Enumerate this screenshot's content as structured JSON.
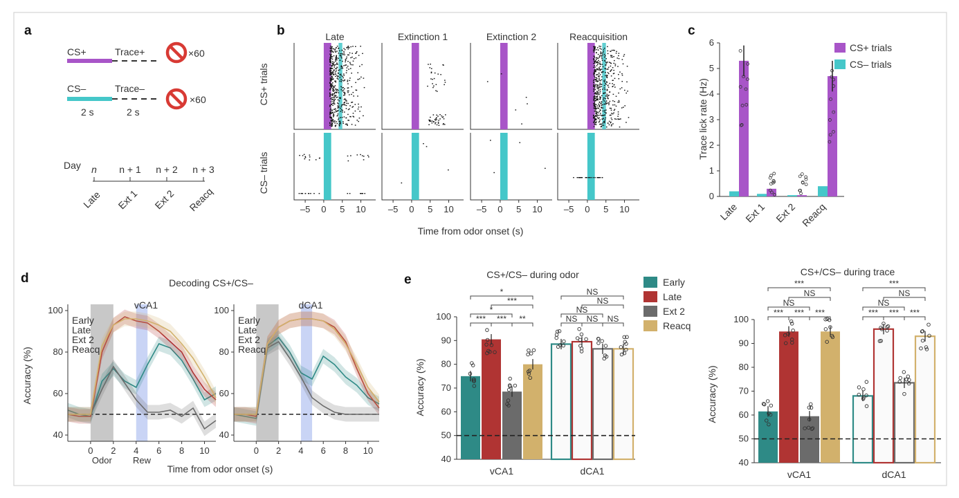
{
  "colors": {
    "purple": "#a855c8",
    "teal": "#45c7c9",
    "early": "#2e8a86",
    "late": "#b03433",
    "ext2": "#6b6b6b",
    "reacq": "#d2b16c",
    "grayband": "#c8c8c8",
    "blueband": "#c9d4f5",
    "ext1": "#b9b9b9"
  },
  "panel_a": {
    "letter": "a",
    "cs_plus": "CS+",
    "trace_plus": "Trace+",
    "times_plus": "×60",
    "cs_minus": "CS–",
    "trace_minus": "Trace–",
    "times_minus": "×60",
    "dur_cs": "2 s",
    "dur_trace": "2 s",
    "day_label": "Day",
    "days": [
      "n",
      "n + 1",
      "n + 2",
      "n + 3"
    ],
    "phases": [
      "Late",
      "Ext 1",
      "Ext 2",
      "Reacq"
    ],
    "icon": "no-reward-icon"
  },
  "panel_b": {
    "letter": "b",
    "columns": [
      "Late",
      "Extinction 1",
      "Extinction 2",
      "Reacquisition"
    ],
    "rows": [
      "CS+ trials",
      "CS– trials"
    ],
    "xticks": [
      "–5",
      "0",
      "5",
      "10"
    ],
    "xlabel": "Time from odor onset (s)"
  },
  "panel_c": {
    "letter": "c",
    "ylabel": "Trace lick rate (Hz)",
    "legend": [
      "CS+ trials",
      "CS– trials"
    ],
    "chart_data": {
      "type": "bar",
      "categories": [
        "Late",
        "Ext 1",
        "Ext 2",
        "Reacq"
      ],
      "series": [
        {
          "name": "CS+ trials",
          "values": [
            5.3,
            0.3,
            0.05,
            4.7
          ]
        },
        {
          "name": "CS– trials",
          "values": [
            0.2,
            0.1,
            0.05,
            0.4
          ]
        }
      ],
      "ylim": [
        0,
        6
      ],
      "yticks": [
        "0",
        "1",
        "2",
        "3",
        "4",
        "5",
        "6"
      ]
    }
  },
  "panel_d": {
    "letter": "d",
    "title": "Decoding CS+/CS–",
    "xlabel": "Time from odor onset (s)",
    "ylabel": "Accuracy (%)",
    "odor_label": "Odor",
    "rew_label": "Rew",
    "legend": [
      "Early",
      "Late",
      "Ext 2",
      "Reacq"
    ],
    "chart_data": [
      {
        "type": "line",
        "title": "vCA1",
        "x": [
          -2,
          -1,
          0,
          1,
          2,
          3,
          4,
          5,
          6,
          7,
          8,
          9,
          10,
          11
        ],
        "xticks": [
          "0",
          "2",
          "4",
          "6",
          "8",
          "10"
        ],
        "yticks": [
          "40",
          "60",
          "80",
          "100"
        ],
        "xlim": [
          -2,
          11
        ],
        "ylim": [
          37,
          103
        ],
        "series": [
          {
            "name": "Early",
            "values": [
              52,
              50,
              49,
              66,
              72,
              66,
              63,
              74,
              84,
              82,
              76,
              67,
              57,
              60
            ]
          },
          {
            "name": "Late",
            "values": [
              50,
              49,
              49,
              80,
              93,
              97,
              95,
              94,
              90,
              85,
              80,
              70,
              62,
              57
            ]
          },
          {
            "name": "Ext 2",
            "values": [
              50,
              50,
              50,
              62,
              73,
              65,
              57,
              51,
              51,
              52,
              49,
              53,
              43,
              47
            ]
          },
          {
            "name": "Reacq",
            "values": [
              50,
              50,
              50,
              83,
              93,
              96,
              96,
              95,
              93,
              90,
              84,
              77,
              68,
              58
            ]
          }
        ]
      },
      {
        "type": "line",
        "title": "dCA1",
        "x": [
          -2,
          -1,
          0,
          1,
          2,
          3,
          4,
          5,
          6,
          7,
          8,
          9,
          10,
          11
        ],
        "xticks": [
          "0",
          "2",
          "4",
          "6",
          "8",
          "10"
        ],
        "yticks": [
          "40",
          "60",
          "80",
          "100"
        ],
        "xlim": [
          -2,
          11
        ],
        "ylim": [
          37,
          103
        ],
        "series": [
          {
            "name": "Early",
            "values": [
              50,
              49,
              48,
              83,
              87,
              80,
              70,
              67,
              78,
              74,
              68,
              64,
              58,
              55
            ]
          },
          {
            "name": "Late",
            "values": [
              50,
              50,
              49,
              84,
              92,
              95,
              96,
              96,
              95,
              92,
              85,
              72,
              60,
              53
            ]
          },
          {
            "name": "Ext 2",
            "values": [
              50,
              50,
              50,
              82,
              85,
              77,
              68,
              58,
              54,
              51,
              50,
              50,
              50,
              50
            ]
          },
          {
            "name": "Reacq",
            "values": [
              50,
              50,
              50,
              84,
              92,
              95,
              96,
              96,
              95,
              91,
              84,
              74,
              63,
              56
            ]
          }
        ]
      }
    ]
  },
  "panel_e": {
    "letter": "e",
    "ylabel": "Accuracy (%)",
    "legend": [
      "Early",
      "Late",
      "Ext 2",
      "Reacq"
    ],
    "chart_data": [
      {
        "type": "bar",
        "title": "CS+/CS– during odor",
        "categories": [
          "vCA1",
          "dCA1"
        ],
        "series": [
          {
            "name": "Early",
            "values": [
              75,
              88.5
            ]
          },
          {
            "name": "Late",
            "values": [
              90.5,
              89.5
            ]
          },
          {
            "name": "Ext 2",
            "values": [
              68.5,
              86.5
            ]
          },
          {
            "name": "Reacq",
            "values": [
              80,
              86.5
            ]
          }
        ],
        "ylim": [
          40,
          100
        ],
        "yticks": [
          "40",
          "50",
          "60",
          "70",
          "80",
          "90",
          "100"
        ],
        "chance": 50,
        "sig_vca1": [
          "*",
          "***",
          "*",
          "***",
          "***",
          "**"
        ],
        "sig_dca1": [
          "NS",
          "NS",
          "NS",
          "NS",
          "NS",
          "NS"
        ]
      },
      {
        "type": "bar",
        "title": "CS+/CS– during trace",
        "categories": [
          "vCA1",
          "dCA1"
        ],
        "series": [
          {
            "name": "Early",
            "values": [
              61.5,
              68
            ]
          },
          {
            "name": "Late",
            "values": [
              95,
              96
            ]
          },
          {
            "name": "Ext 2",
            "values": [
              59.5,
              73.5
            ]
          },
          {
            "name": "Reacq",
            "values": [
              95,
              93
            ]
          }
        ],
        "ylim": [
          40,
          100
        ],
        "yticks": [
          "40",
          "50",
          "60",
          "70",
          "80",
          "90",
          "100"
        ],
        "chance": 50,
        "sig_vca1": [
          "***",
          "NS",
          "NS",
          "***",
          "***",
          "***"
        ],
        "sig_dca1": [
          "***",
          "NS",
          "NS",
          "***",
          "***",
          "***"
        ]
      }
    ]
  }
}
